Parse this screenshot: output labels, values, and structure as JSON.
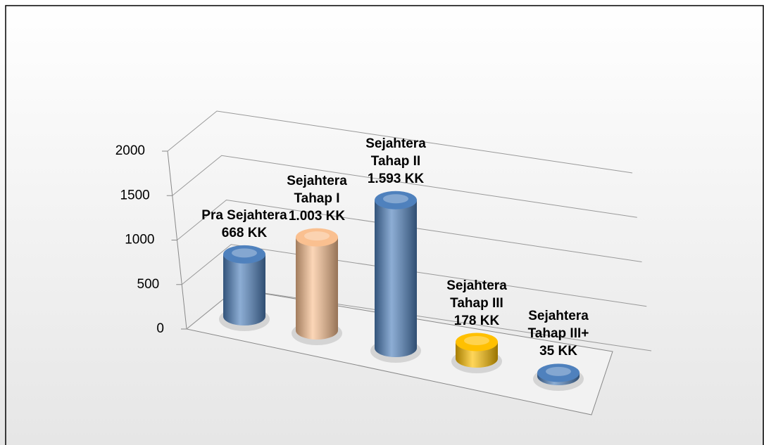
{
  "chart_data": {
    "type": "bar3d",
    "categories": [
      "Pra Sejahtera",
      "Sejahtera Tahap I",
      "Sejahtera Tahap II",
      "Sejahtera Tahap III",
      "Sejahtera Tahap III+"
    ],
    "values": [
      668,
      1003,
      1593,
      178,
      35
    ],
    "value_labels": [
      "668 KK",
      "1.003 KK",
      "1.593 KK",
      "178 KK",
      "35 KK"
    ],
    "colors": [
      "#4f81bd",
      "#fac090",
      "#4f81bd",
      "#ffc000",
      "#4f81bd"
    ],
    "ylim": [
      0,
      2000
    ],
    "yticks": [
      0,
      500,
      1000,
      1500,
      2000
    ],
    "grid": true
  }
}
